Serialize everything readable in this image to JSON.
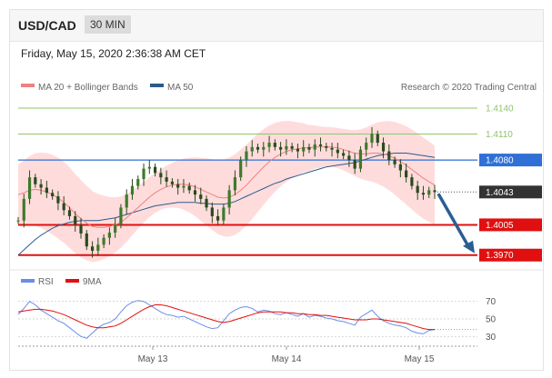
{
  "header": {
    "pair": "USD/CAD",
    "timeframe": "30 MIN",
    "datetime": "Friday, May 15, 2020 2:36:38 AM CET"
  },
  "legend": {
    "ma20": "MA 20 + Bollinger Bands",
    "ma50": "MA 50",
    "credit": "Research © 2020 Trading Central"
  },
  "rsi_legend": {
    "rsi": "RSI",
    "ma": "9MA"
  },
  "colors": {
    "ma20": "#f08080",
    "ma50": "#2c5a8c",
    "band": "#ffd6d6",
    "resistance": "#8fc46a",
    "pivot": "#2f6fd6",
    "support": "#e01010",
    "current": "#333333",
    "arrow": "#2a5d94",
    "rsi": "#6b8de6",
    "rsi_ma": "#e01010"
  },
  "chart_data": [
    {
      "type": "line",
      "title": "USD/CAD",
      "subtitle": "30 MIN",
      "xlabel": "",
      "ylabel": "",
      "x_ticks": [
        "May 13",
        "May 14",
        "May 15"
      ],
      "ylim": [
        1.3955,
        1.416
      ],
      "grid": false,
      "legend_position": "top-left",
      "levels": [
        {
          "label": "1.4140",
          "value": 1.414,
          "kind": "resistance"
        },
        {
          "label": "1.4110",
          "value": 1.411,
          "kind": "resistance"
        },
        {
          "label": "1.4080",
          "value": 1.408,
          "kind": "pivot"
        },
        {
          "label": "1.4043",
          "value": 1.4043,
          "kind": "current"
        },
        {
          "label": "1.4005",
          "value": 1.4005,
          "kind": "support"
        },
        {
          "label": "1.3970",
          "value": 1.397,
          "kind": "support"
        }
      ],
      "price_close": [
        1.401,
        1.4035,
        1.406,
        1.4052,
        1.4048,
        1.4042,
        1.4038,
        1.403,
        1.4022,
        1.4015,
        1.4005,
        1.3995,
        1.398,
        1.3975,
        1.3982,
        1.399,
        1.3996,
        1.4005,
        1.4025,
        1.404,
        1.405,
        1.4058,
        1.407,
        1.4072,
        1.4065,
        1.406,
        1.4055,
        1.4052,
        1.4048,
        1.405,
        1.4045,
        1.404,
        1.4035,
        1.4025,
        1.4015,
        1.401,
        1.4025,
        1.4045,
        1.406,
        1.408,
        1.409,
        1.4095,
        1.4092,
        1.4095,
        1.41,
        1.4095,
        1.4092,
        1.4096,
        1.4093,
        1.409,
        1.4095,
        1.4092,
        1.4098,
        1.4096,
        1.4094,
        1.4092,
        1.4088,
        1.4085,
        1.408,
        1.407,
        1.4092,
        1.41,
        1.411,
        1.41,
        1.409,
        1.408,
        1.4075,
        1.4068,
        1.406,
        1.405,
        1.4042,
        1.404,
        1.4045,
        1.4043
      ],
      "series": [
        {
          "name": "MA 20",
          "values": [
            1.404,
            1.4042,
            1.4045,
            1.4046,
            1.4045,
            1.4043,
            1.404,
            1.4036,
            1.4031,
            1.4025,
            1.4018,
            1.4012,
            1.4007,
            1.4003,
            1.4002,
            1.4002,
            1.4003,
            1.4005,
            1.4008,
            1.4013,
            1.4019,
            1.4025,
            1.4031,
            1.4037,
            1.4042,
            1.4046,
            1.4049,
            1.4051,
            1.4052,
            1.4052,
            1.4051,
            1.4049,
            1.4046,
            1.4043,
            1.404,
            1.4037,
            1.4036,
            1.4037,
            1.404,
            1.4045,
            1.4051,
            1.4058,
            1.4065,
            1.4072,
            1.4078,
            1.4083,
            1.4087,
            1.409,
            1.4092,
            1.4093,
            1.4094,
            1.4094,
            1.4095,
            1.4095,
            1.4095,
            1.4095,
            1.4094,
            1.4092,
            1.409,
            1.4088,
            1.4087,
            1.4087,
            1.4088,
            1.4088,
            1.4087,
            1.4085,
            1.4082,
            1.4078,
            1.4074,
            1.4069,
            1.4064,
            1.4059,
            1.4055,
            1.4051
          ]
        },
        {
          "name": "MA 50",
          "values": [
            1.397,
            1.3976,
            1.3982,
            1.3988,
            1.3993,
            1.3997,
            1.4001,
            1.4004,
            1.4006,
            1.4008,
            1.4009,
            1.401,
            1.401,
            1.401,
            1.401,
            1.4011,
            1.4012,
            1.4013,
            1.4015,
            1.4017,
            1.4019,
            1.4021,
            1.4023,
            1.4025,
            1.4027,
            1.4028,
            1.4029,
            1.403,
            1.4031,
            1.4031,
            1.4031,
            1.4031,
            1.403,
            1.403,
            1.4029,
            1.4029,
            1.4029,
            1.403,
            1.4032,
            1.4035,
            1.4038,
            1.4041,
            1.4044,
            1.4047,
            1.405,
            1.4053,
            1.4055,
            1.4058,
            1.406,
            1.4062,
            1.4064,
            1.4066,
            1.4068,
            1.407,
            1.4072,
            1.4073,
            1.4074,
            1.4075,
            1.4076,
            1.4077,
            1.4079,
            1.4081,
            1.4083,
            1.4085,
            1.4086,
            1.4087,
            1.4088,
            1.4088,
            1.4088,
            1.4087,
            1.4086,
            1.4085,
            1.4084,
            1.4083
          ]
        }
      ]
    },
    {
      "type": "line",
      "title": "",
      "xlabel": "",
      "ylabel": "",
      "y_ticks": [
        30,
        50,
        70
      ],
      "ylim": [
        20,
        80
      ],
      "grid": false,
      "legend_position": "top-left",
      "series": [
        {
          "name": "RSI",
          "values": [
            55,
            62,
            70,
            66,
            60,
            56,
            52,
            48,
            45,
            40,
            35,
            30,
            28,
            34,
            40,
            44,
            46,
            50,
            58,
            65,
            69,
            71,
            70,
            66,
            62,
            58,
            55,
            54,
            52,
            53,
            50,
            47,
            44,
            41,
            39,
            40,
            48,
            56,
            60,
            63,
            64,
            62,
            58,
            60,
            59,
            56,
            55,
            57,
            55,
            53,
            56,
            52,
            54,
            53,
            51,
            50,
            48,
            47,
            45,
            43,
            52,
            56,
            60,
            53,
            48,
            45,
            43,
            42,
            40,
            36,
            34,
            33,
            37,
            38
          ]
        },
        {
          "name": "9MA",
          "values": [
            58,
            59,
            60,
            61,
            61,
            60,
            59,
            57,
            55,
            52,
            49,
            46,
            43,
            41,
            40,
            40,
            41,
            42,
            45,
            49,
            53,
            57,
            61,
            64,
            66,
            66,
            65,
            63,
            61,
            59,
            57,
            55,
            53,
            51,
            49,
            47,
            46,
            47,
            49,
            51,
            53,
            55,
            57,
            58,
            58,
            58,
            58,
            57,
            57,
            56,
            56,
            55,
            55,
            54,
            54,
            53,
            52,
            51,
            50,
            49,
            49,
            49,
            50,
            50,
            49,
            48,
            47,
            46,
            45,
            43,
            41,
            39,
            38,
            38
          ]
        }
      ]
    }
  ]
}
